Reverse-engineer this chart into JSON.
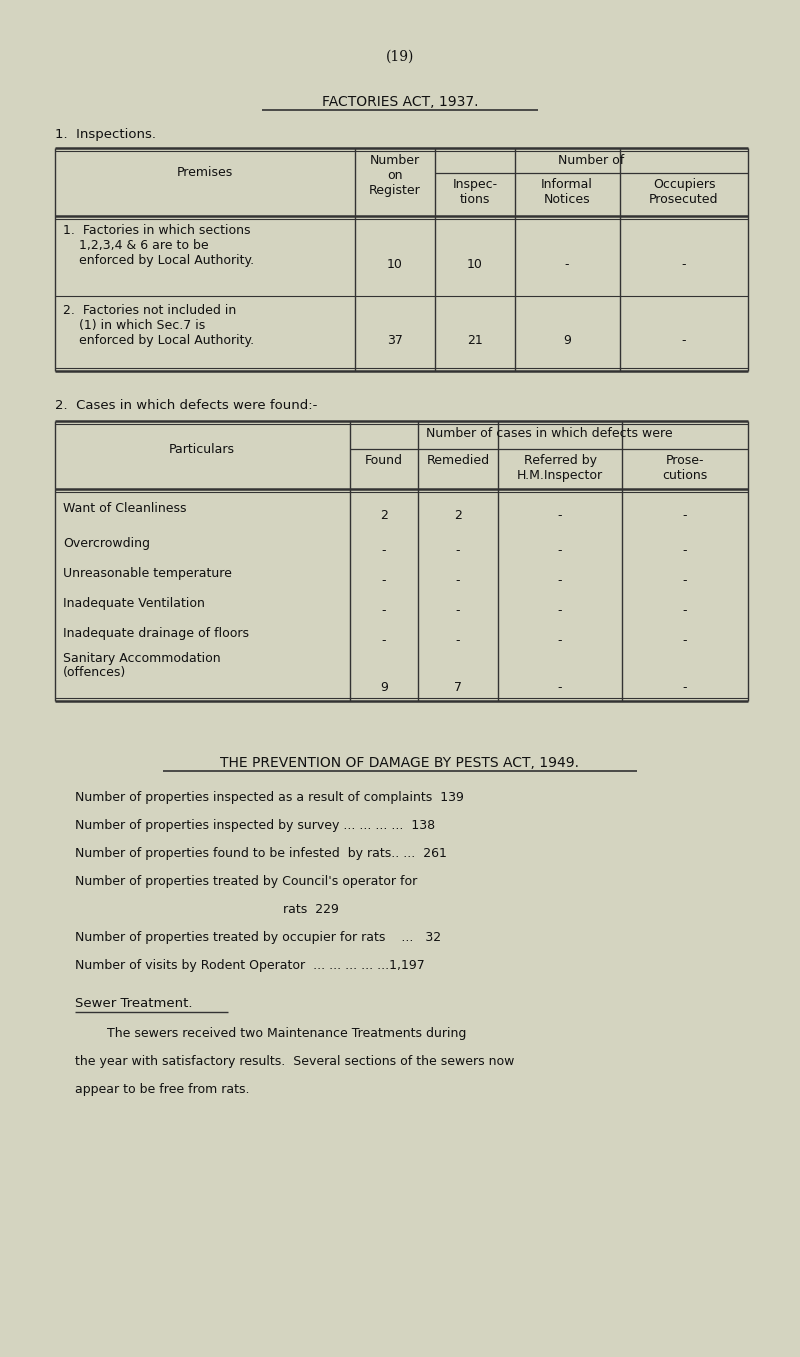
{
  "bg_color": "#d4d4c0",
  "page_number": "(19)",
  "section1_title": "FACTORIES ACT, 1937.",
  "section1_subtitle": "1.  Inspections.",
  "table1_header_col0": "Premises",
  "table1_header_col1": "Number\non\nRegister",
  "table1_header_group": "Number of",
  "table1_header_col2": "Inspec-\ntions",
  "table1_header_col3": "Informal\nNotices",
  "table1_header_col4": "Occupiers\nProsecuted",
  "table1_row1_col0": "1.  Factories in which sections\n    1,2,3,4 & 6 are to be\n    enforced by Local Authority.",
  "table1_row1_col1": "10",
  "table1_row1_col2": "10",
  "table1_row1_col3": "-",
  "table1_row1_col4": "-",
  "table1_row2_col0": "2.  Factories not included in\n    (1) in which Sec.7 is\n    enforced by Local Authority.",
  "table1_row2_col1": "37",
  "table1_row2_col2": "21",
  "table1_row2_col3": "9",
  "table1_row2_col4": "-",
  "section2_title": "2.  Cases in which defects were found:-",
  "table2_header_col0": "Particulars",
  "table2_header_group": "Number of cases in which defects were",
  "table2_header_col1": "Found",
  "table2_header_col2": "Remedied",
  "table2_header_col3": "Referred by\nH.M.Inspector",
  "table2_header_col4": "Prose-\ncutions",
  "table2_rows": [
    [
      "Want of Cleanliness",
      "2",
      "2",
      "-",
      "-"
    ],
    [
      "Overcrowding",
      "-",
      "-",
      "-",
      "-"
    ],
    [
      "Unreasonable temperature",
      "-",
      "-",
      "-",
      "-"
    ],
    [
      "Inadequate Ventilation",
      "-",
      "-",
      "-",
      "-"
    ],
    [
      "Inadequate drainage of floors",
      "-",
      "-",
      "-",
      "-"
    ],
    [
      "Sanitary Accommodation\n(offences)",
      "9",
      "7",
      "-",
      "-"
    ]
  ],
  "section3_title": "THE PREVENTION OF DAMAGE BY PESTS ACT, 1949.",
  "pests_lines": [
    [
      "Number of properties inspected as a result of complaints  139",
      ""
    ],
    [
      "Number of properties inspected by survey ... ... ... ...  138",
      ""
    ],
    [
      "Number of properties found to be infested  by rats.. ...  261",
      ""
    ],
    [
      "Number of properties treated by Council's operator for",
      ""
    ],
    [
      "                                                    rats  229",
      ""
    ],
    [
      "Number of properties treated by occupier for rats    ...   32",
      ""
    ],
    [
      "Number of visits by Rodent Operator  ... ... ... ... ...1,197",
      ""
    ]
  ],
  "sewer_title": "Sewer Treatment.",
  "sewer_lines": [
    "        The sewers received two Maintenance Treatments during",
    "the year with satisfactory results.  Several sections of the sewers now",
    "appear to be free from rats."
  ]
}
